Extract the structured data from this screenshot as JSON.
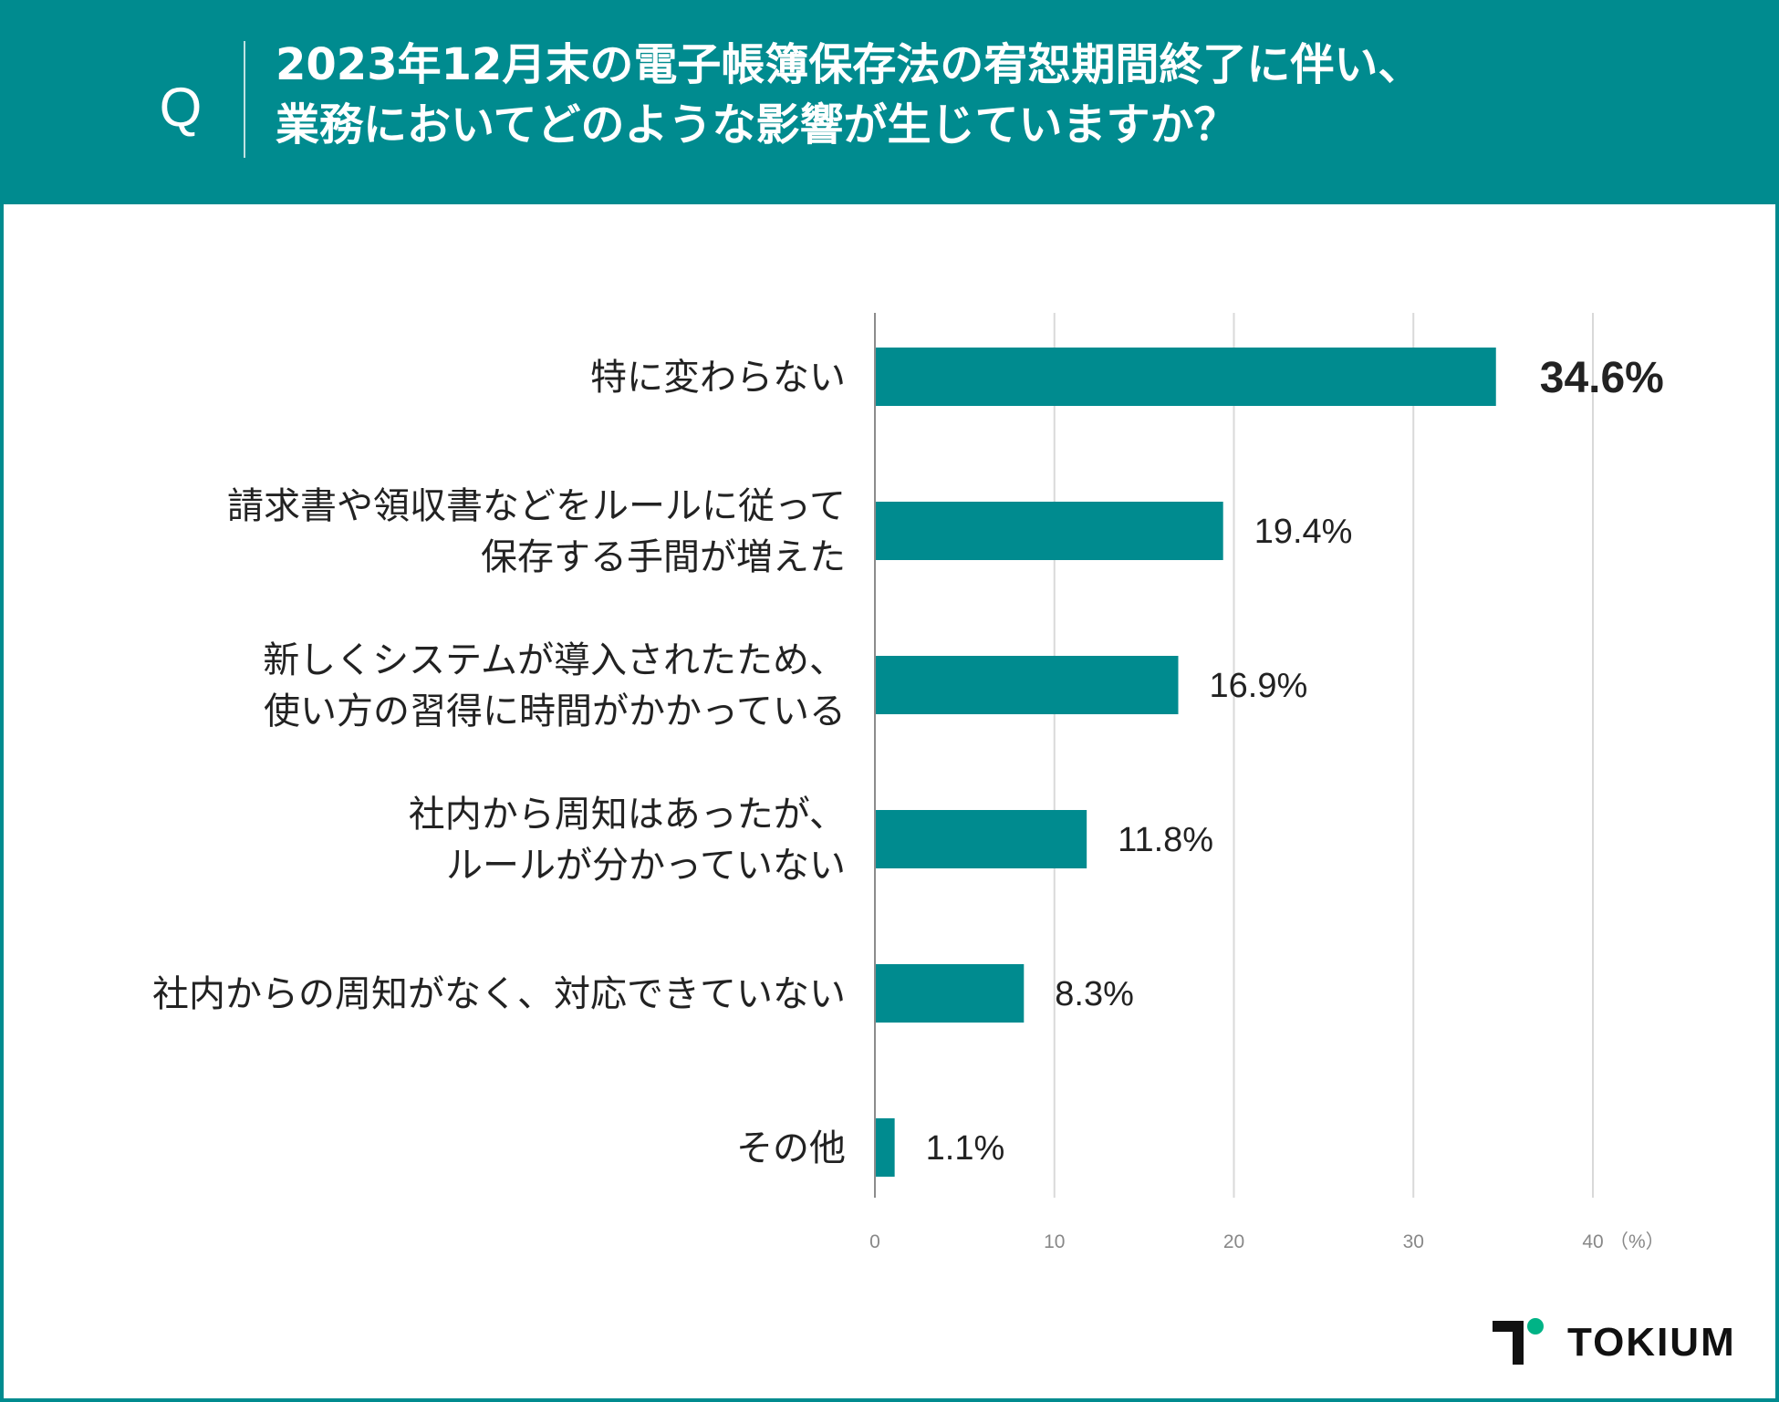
{
  "header": {
    "q_label": "Q",
    "title_lines": [
      "2023年12月末の電子帳簿保存法の宥恕期間終了に伴い、",
      "業務においてどのような影響が生じていますか？"
    ]
  },
  "colors": {
    "accent": "#008b8f",
    "bar": "#008b8f",
    "grid": "#d9d9d9",
    "axis": "#8c8c8c",
    "logo_green": "#00b386"
  },
  "chart_data": {
    "type": "bar",
    "orientation": "horizontal",
    "title": "2023年12月末の電子帳簿保存法の宥恕期間終了に伴い、業務においてどのような影響が生じていますか？",
    "categories": [
      [
        "特に変わらない"
      ],
      [
        "請求書や領収書などをルールに従って",
        "保存する手間が増えた"
      ],
      [
        "新しくシステムが導入されたため、",
        "使い方の習得に時間がかかっている"
      ],
      [
        "社内から周知はあったが、",
        "ルールが分かっていない"
      ],
      [
        "社内からの周知がなく、対応できていない"
      ],
      [
        "その他"
      ]
    ],
    "values": [
      34.6,
      19.4,
      16.9,
      11.8,
      8.3,
      1.1
    ],
    "value_labels": [
      "34.6%",
      "19.4%",
      "16.9%",
      "11.8%",
      "8.3%",
      "1.1%"
    ],
    "xlim": [
      0,
      40
    ],
    "xticks": [
      0,
      10,
      20,
      30,
      40
    ],
    "xtick_labels": [
      "0",
      "10",
      "20",
      "30",
      "40"
    ],
    "unit_label": "（%）",
    "grid": true
  },
  "logo": {
    "text": "TOKIUM"
  }
}
